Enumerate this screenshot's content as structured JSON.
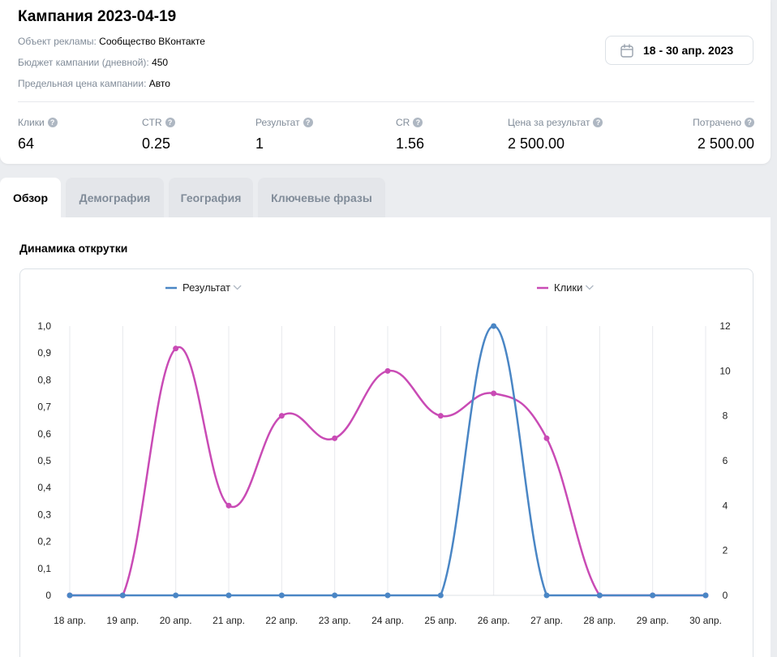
{
  "campaign": {
    "title": "Кампания 2023-04-19",
    "object_label": "Объект рекламы:",
    "object_value": "Сообщество ВКонтакте",
    "budget_label": "Бюджет кампании (дневной):",
    "budget_value": "450",
    "price_label": "Предельная цена кампании:",
    "price_value": "Авто"
  },
  "date_range": {
    "label": "18 - 30 апр. 2023",
    "icon": "calendar-icon"
  },
  "stats": [
    {
      "label": "Клики",
      "value": "64"
    },
    {
      "label": "CTR",
      "value": "0.25"
    },
    {
      "label": "Результат",
      "value": "1"
    },
    {
      "label": "CR",
      "value": "1.56"
    },
    {
      "label": "Цена за результат",
      "value": "2 500.00"
    },
    {
      "label": "Потрачено",
      "value": "2 500.00"
    }
  ],
  "tabs": [
    {
      "label": "Обзор",
      "active": true
    },
    {
      "label": "Демография",
      "active": false
    },
    {
      "label": "География",
      "active": false
    },
    {
      "label": "Ключевые фразы",
      "active": false
    }
  ],
  "section_title": "Динамика открутки",
  "chart_data": {
    "type": "line",
    "categories": [
      "18 апр.",
      "19 апр.",
      "20 апр.",
      "21 апр.",
      "22 апр.",
      "23 апр.",
      "24 апр.",
      "25 апр.",
      "26 апр.",
      "27 апр.",
      "28 апр.",
      "29 апр.",
      "30 апр."
    ],
    "series": [
      {
        "name": "Результат",
        "axis": "left",
        "color": "#4a86c5",
        "values": [
          0,
          0,
          0,
          0,
          0,
          0,
          0,
          0,
          1,
          0,
          0,
          0,
          0
        ]
      },
      {
        "name": "Клики",
        "axis": "right",
        "color": "#c94bb5",
        "values": [
          0,
          0,
          11,
          4,
          8,
          7,
          10,
          8,
          9,
          7,
          0,
          0,
          0
        ]
      }
    ],
    "y_left": {
      "range": [
        0,
        1
      ],
      "ticks": [
        "0",
        "0,1",
        "0,2",
        "0,3",
        "0,4",
        "0,5",
        "0,6",
        "0,7",
        "0,8",
        "0,9",
        "1,0"
      ]
    },
    "y_right": {
      "range": [
        0,
        12
      ],
      "ticks": [
        "0",
        "2",
        "4",
        "6",
        "8",
        "10",
        "12"
      ]
    },
    "grid": "vertical",
    "legend": "top"
  }
}
